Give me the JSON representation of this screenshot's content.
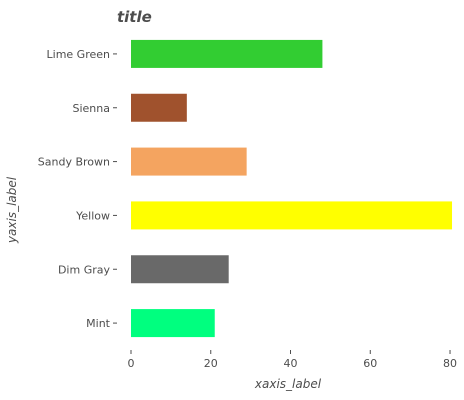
{
  "chart_data": {
    "type": "bar",
    "orientation": "horizontal",
    "title": "title",
    "xlabel": "xaxis_label",
    "ylabel": "yaxis_label",
    "categories": [
      "Mint",
      "Dim Gray",
      "Yellow",
      "Sandy Brown",
      "Sienna",
      "Lime Green"
    ],
    "values": [
      21,
      24.5,
      80.5,
      29,
      14,
      48
    ],
    "colors": [
      "#00ff7f",
      "#696969",
      "#ffff00",
      "#f4a460",
      "#a0522d",
      "#32cd32"
    ],
    "xlim": [
      0,
      82
    ],
    "xticks": [
      0,
      20,
      40,
      60,
      80
    ],
    "xtick_labels": [
      "0",
      "20",
      "40",
      "60",
      "80"
    ],
    "grid": false,
    "legend": "none"
  }
}
